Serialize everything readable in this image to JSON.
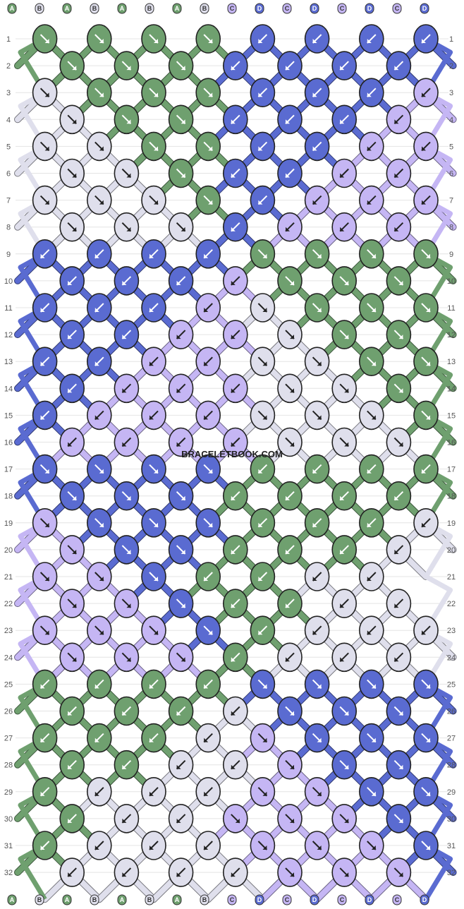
{
  "watermark": "BRACELETBOOK.COM",
  "colors": {
    "A": "#6fa06f",
    "B": "#dfdfec",
    "C": "#c5b6f4",
    "D": "#5a6bd1"
  },
  "row_labels": [
    "1",
    "2",
    "3",
    "4",
    "5",
    "6",
    "7",
    "8",
    "9",
    "10",
    "11",
    "12",
    "13",
    "14",
    "15",
    "16",
    "17",
    "18",
    "19",
    "20",
    "21",
    "22",
    "23",
    "24",
    "25",
    "26",
    "27",
    "28",
    "29",
    "30",
    "31",
    "32"
  ],
  "top_strands": [
    "A",
    "B",
    "A",
    "B",
    "A",
    "B",
    "A",
    "B",
    "C",
    "D",
    "C",
    "D",
    "C",
    "D",
    "C",
    "D"
  ],
  "bottom_strands": [
    "A",
    "B",
    "A",
    "B",
    "A",
    "B",
    "A",
    "B",
    "C",
    "D",
    "C",
    "D",
    "C",
    "D",
    "C",
    "D"
  ],
  "knots": [
    "A:R A:R A:R A:R D:L D:L D:L D:L",
    "A:R A:R A:R D:L D:L D:L D:L",
    "B:R A:R A:R A:R D:L D:L D:L C:L",
    "B:R A:R A:R D:L D:L D:L C:L",
    "B:R B:R A:R A:R D:L D:L C:L C:L",
    "B:R B:R A:R D:L D:L C:L C:L",
    "B:R B:R B:R A:R D:L C:L C:L C:L",
    "B:R B:R B:R D:L C:L C:L C:L",
    "D:L D:L D:L D:L A:R A:R A:R A:R",
    "D:L D:L D:L C:L A:R A:R A:R",
    "D:L D:L D:L C:L B:R A:R A:R A:R",
    "D:L D:L C:L C:L B:R A:R A:R",
    "D:L D:L C:L C:L B:R B:R A:R A:R",
    "D:L C:L C:L C:L B:R B:R A:R",
    "D:L C:L C:L C:L B:R B:R B:R A:R",
    "C:L C:L C:L C:L B:R B:R B:R",
    "D:R D:R D:R D:R A:L A:L A:L A:L",
    "D:R D:R D:R A:L A:L A:L A:L",
    "C:R D:R D:R D:R A:L A:L A:L B:L",
    "C:R D:R D:R A:L A:L A:L B:L",
    "C:R C:R D:R A:L A:L B:L B:L",
    "C:R C:R D:R A:L A:L B:L B:L",
    "C:R C:R C:R D:R A:L B:L B:L B:L",
    "C:R C:R C:R A:L B:L B:L B:L",
    "A:L A:L A:L A:L D:R D:R D:R D:R",
    "A:L A:L A:L B:L D:R D:R D:R",
    "A:L A:L A:L B:L C:R D:R D:R D:R",
    "A:L A:L B:L B:L C:R D:R D:R",
    "A:L B:L B:L B:L C:R C:R D:R D:R",
    "A:L B:L B:L C:R C:R C:R D:R",
    "A:L B:L B:L B:L C:R C:R C:R D:R",
    "B:L B:L B:L B:L C:R C:R C:R"
  ]
}
